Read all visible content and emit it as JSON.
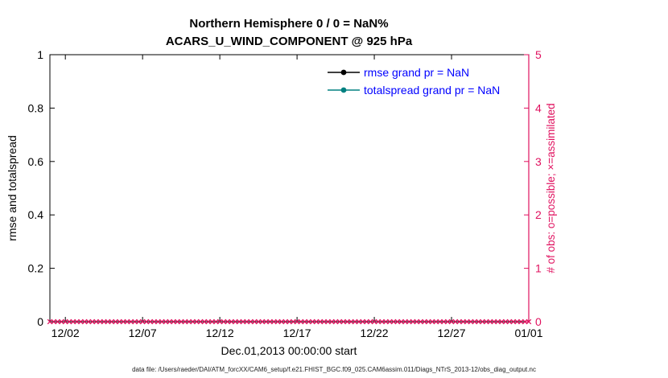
{
  "caption": "data file: /Users/raeder/DAI/ATM_forcXX/CAM6_setup/f.e21.FHIST_BGC.f09_025.CAM6assim.011/Diags_NTrS_2013-12/obs_diag_output.nc",
  "chart_data": {
    "type": "line",
    "title1": "Northern Hemisphere 0 / 0 = NaN%",
    "title2": "ACARS_U_WIND_COMPONENT @ 925 hPa",
    "x_axis": {
      "label": "Dec.01,2013 00:00:00 start",
      "tick_labels": [
        "12/02",
        "12/07",
        "12/12",
        "12/17",
        "12/22",
        "12/27",
        "01/01"
      ],
      "tick_positions_days": [
        1,
        6,
        11,
        16,
        21,
        26,
        31
      ],
      "range_days": [
        0,
        31
      ],
      "start_time": "Dec.01,2013 00:00:00"
    },
    "y_left": {
      "label": "rmse and totalspread",
      "tick_labels": [
        "0",
        "0.2",
        "0.4",
        "0.6",
        "0.8",
        "1"
      ],
      "range": [
        0,
        1
      ],
      "color": "#000000"
    },
    "y_right": {
      "label": "# of obs: o=possible; ×=assimilated",
      "tick_labels": [
        "0",
        "1",
        "2",
        "3",
        "4",
        "5"
      ],
      "range": [
        0,
        5
      ],
      "color": "#e0115f"
    },
    "legend": {
      "text_color": "#0000ff",
      "items": [
        {
          "label": "rmse grand pr = NaN",
          "line_color": "#000000",
          "marker": "filled-circle"
        },
        {
          "label": "totalspread grand pr = NaN",
          "line_color": "#008080",
          "marker": "filled-circle"
        }
      ]
    },
    "series": [
      {
        "name": "rmse",
        "grand_pr": "NaN",
        "values": []
      },
      {
        "name": "totalspread",
        "grand_pr": "NaN",
        "values": []
      },
      {
        "name": "obs_assimilated",
        "axis": "right",
        "marker": "x",
        "color": "#e0115f",
        "constant_value": 0,
        "times_per_day": 4,
        "n_points": 125
      }
    ],
    "stats": {
      "possible": 0,
      "assimilated": 0,
      "percent": "NaN%"
    },
    "grid": false,
    "legend_position": "upper-center-right-inside"
  }
}
